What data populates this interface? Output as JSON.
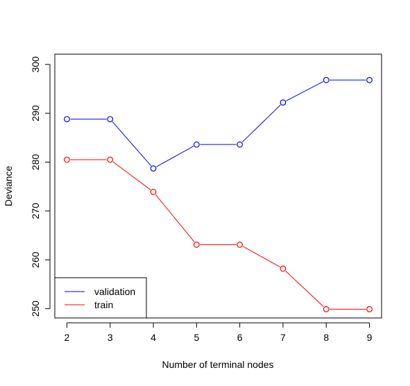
{
  "chart_data": {
    "type": "line",
    "title": "",
    "xlabel": "Number of terminal nodes",
    "ylabel": "Deviance",
    "x": [
      2,
      3,
      4,
      5,
      6,
      7,
      8,
      9
    ],
    "xlim": [
      1.72,
      9.28
    ],
    "ylim": [
      248.1,
      302.1
    ],
    "x_ticks": [
      2,
      3,
      4,
      5,
      6,
      7,
      8,
      9
    ],
    "y_ticks": [
      250,
      260,
      270,
      280,
      290,
      300
    ],
    "grid": false,
    "legend_position": "bottom-left",
    "series": [
      {
        "name": "validation",
        "color": "#0000ff",
        "marker": "open-circle",
        "values": [
          288.8,
          288.8,
          278.7,
          283.6,
          283.6,
          292.2,
          296.8,
          296.8
        ]
      },
      {
        "name": "train",
        "color": "#ff0000",
        "marker": "open-circle",
        "values": [
          280.5,
          280.5,
          273.9,
          263.1,
          263.1,
          258.2,
          249.9,
          249.9
        ]
      }
    ]
  }
}
